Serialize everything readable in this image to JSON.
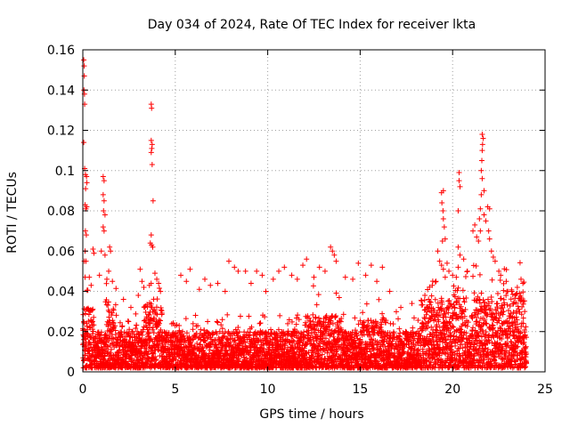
{
  "chart_data": {
    "type": "scatter",
    "title": "Day 034 of 2024, Rate Of TEC Index for receiver lkta",
    "xlabel": "GPS time / hours",
    "ylabel": "ROTI / TECUs",
    "xlim": [
      0,
      25
    ],
    "ylim": [
      0,
      0.16
    ],
    "xticks": [
      0,
      5,
      10,
      15,
      20,
      25
    ],
    "yticks": [
      0,
      0.02,
      0.04,
      0.06,
      0.08,
      0.1,
      0.12,
      0.14,
      0.16
    ],
    "xtick_labels": [
      "0",
      "5",
      "10",
      "15",
      "20",
      "25"
    ],
    "ytick_labels": [
      "0",
      "0.02",
      "0.04",
      "0.06",
      "0.08",
      "0.1",
      "0.12",
      "0.14",
      "0.16"
    ],
    "grid": true,
    "marker": "+",
    "color": "#ff0000",
    "series": [
      {
        "points": [
          [
            0.05,
            0.155
          ],
          [
            0.07,
            0.152
          ],
          [
            0.08,
            0.147
          ],
          [
            0.06,
            0.14
          ],
          [
            0.09,
            0.138
          ],
          [
            0.1,
            0.133
          ],
          [
            0.05,
            0.114
          ],
          [
            0.1,
            0.101
          ],
          [
            0.14,
            0.098
          ],
          [
            0.2,
            0.097
          ],
          [
            0.22,
            0.094
          ],
          [
            0.15,
            0.091
          ],
          [
            0.12,
            0.083
          ],
          [
            0.17,
            0.081
          ],
          [
            0.21,
            0.082
          ],
          [
            0.14,
            0.07
          ],
          [
            0.19,
            0.068
          ],
          [
            0.12,
            0.06
          ],
          [
            0.17,
            0.055
          ],
          [
            0.08,
            0.055
          ],
          [
            0.55,
            0.061
          ],
          [
            0.6,
            0.059
          ],
          [
            0.35,
            0.047
          ],
          [
            0.45,
            0.043
          ],
          [
            1.1,
            0.097
          ],
          [
            1.15,
            0.095
          ],
          [
            1.1,
            0.088
          ],
          [
            1.15,
            0.085
          ],
          [
            1.12,
            0.08
          ],
          [
            1.2,
            0.078
          ],
          [
            1.1,
            0.072
          ],
          [
            1.15,
            0.07
          ],
          [
            1.0,
            0.06
          ],
          [
            1.2,
            0.058
          ],
          [
            1.45,
            0.062
          ],
          [
            1.5,
            0.06
          ],
          [
            1.4,
            0.05
          ],
          [
            1.3,
            0.046
          ],
          [
            1.6,
            0.045
          ],
          [
            0.9,
            0.048
          ],
          [
            2.2,
            0.036
          ],
          [
            2.6,
            0.032
          ],
          [
            3.1,
            0.051
          ],
          [
            3.2,
            0.045
          ],
          [
            3.3,
            0.042
          ],
          [
            3.0,
            0.038
          ],
          [
            3.7,
            0.133
          ],
          [
            3.72,
            0.131
          ],
          [
            3.7,
            0.115
          ],
          [
            3.75,
            0.113
          ],
          [
            3.73,
            0.111
          ],
          [
            3.7,
            0.109
          ],
          [
            3.75,
            0.103
          ],
          [
            3.8,
            0.085
          ],
          [
            3.7,
            0.068
          ],
          [
            3.65,
            0.064
          ],
          [
            3.72,
            0.063
          ],
          [
            3.78,
            0.062
          ],
          [
            3.9,
            0.049
          ],
          [
            4.0,
            0.046
          ],
          [
            4.1,
            0.044
          ],
          [
            3.6,
            0.043
          ],
          [
            4.2,
            0.04
          ],
          [
            5.3,
            0.048
          ],
          [
            5.8,
            0.051
          ],
          [
            5.6,
            0.045
          ],
          [
            6.3,
            0.041
          ],
          [
            6.6,
            0.046
          ],
          [
            6.9,
            0.043
          ],
          [
            7.3,
            0.044
          ],
          [
            7.7,
            0.04
          ],
          [
            7.9,
            0.055
          ],
          [
            8.2,
            0.052
          ],
          [
            8.4,
            0.05
          ],
          [
            8.8,
            0.05
          ],
          [
            9.1,
            0.044
          ],
          [
            9.4,
            0.05
          ],
          [
            9.7,
            0.048
          ],
          [
            9.9,
            0.04
          ],
          [
            10.3,
            0.046
          ],
          [
            10.6,
            0.05
          ],
          [
            10.9,
            0.052
          ],
          [
            11.3,
            0.048
          ],
          [
            11.6,
            0.046
          ],
          [
            11.9,
            0.053
          ],
          [
            12.1,
            0.056
          ],
          [
            12.5,
            0.047
          ],
          [
            12.8,
            0.052
          ],
          [
            13.1,
            0.05
          ],
          [
            13.4,
            0.062
          ],
          [
            13.5,
            0.06
          ],
          [
            13.6,
            0.058
          ],
          [
            13.7,
            0.055
          ],
          [
            14.2,
            0.047
          ],
          [
            14.6,
            0.046
          ],
          [
            14.9,
            0.054
          ],
          [
            15.3,
            0.048
          ],
          [
            15.6,
            0.053
          ],
          [
            15.9,
            0.045
          ],
          [
            16.2,
            0.052
          ],
          [
            16.6,
            0.04
          ],
          [
            17.2,
            0.032
          ],
          [
            17.8,
            0.034
          ],
          [
            18.5,
            0.038
          ],
          [
            18.7,
            0.036
          ],
          [
            18.9,
            0.043
          ],
          [
            19.1,
            0.045
          ],
          [
            19.3,
            0.055
          ],
          [
            19.4,
            0.053
          ],
          [
            19.2,
            0.06
          ],
          [
            19.5,
            0.051
          ],
          [
            19.6,
            0.047
          ],
          [
            19.45,
            0.065
          ],
          [
            19.55,
            0.072
          ],
          [
            19.5,
            0.076
          ],
          [
            19.48,
            0.08
          ],
          [
            19.42,
            0.084
          ],
          [
            19.4,
            0.089
          ],
          [
            19.5,
            0.09
          ],
          [
            19.6,
            0.066
          ],
          [
            19.7,
            0.054
          ],
          [
            19.8,
            0.05
          ],
          [
            20.0,
            0.048
          ],
          [
            20.2,
            0.047
          ],
          [
            20.3,
            0.052
          ],
          [
            20.4,
            0.058
          ],
          [
            20.3,
            0.062
          ],
          [
            20.35,
            0.095
          ],
          [
            20.4,
            0.092
          ],
          [
            20.35,
            0.099
          ],
          [
            20.3,
            0.08
          ],
          [
            20.6,
            0.056
          ],
          [
            20.8,
            0.05
          ],
          [
            21.1,
            0.07
          ],
          [
            21.2,
            0.073
          ],
          [
            21.3,
            0.067
          ],
          [
            21.4,
            0.065
          ],
          [
            21.5,
            0.07
          ],
          [
            21.45,
            0.076
          ],
          [
            21.5,
            0.081
          ],
          [
            21.55,
            0.088
          ],
          [
            21.6,
            0.096
          ],
          [
            21.55,
            0.1
          ],
          [
            21.58,
            0.105
          ],
          [
            21.6,
            0.11
          ],
          [
            21.62,
            0.113
          ],
          [
            21.6,
            0.118
          ],
          [
            21.65,
            0.116
          ],
          [
            21.7,
            0.09
          ],
          [
            21.7,
            0.078
          ],
          [
            21.8,
            0.075
          ],
          [
            21.9,
            0.082
          ],
          [
            22.0,
            0.081
          ],
          [
            21.95,
            0.07
          ],
          [
            22.0,
            0.066
          ],
          [
            22.1,
            0.06
          ],
          [
            22.2,
            0.057
          ],
          [
            22.3,
            0.055
          ],
          [
            22.5,
            0.05
          ],
          [
            22.6,
            0.048
          ],
          [
            22.9,
            0.045
          ],
          [
            23.2,
            0.04
          ],
          [
            23.5,
            0.042
          ],
          [
            23.7,
            0.046
          ],
          [
            23.8,
            0.044
          ],
          [
            23.9,
            0.03
          ]
        ],
        "dense_band": {
          "x_range": [
            0,
            24
          ],
          "y_range": [
            0.002,
            0.03
          ],
          "note_count": 0
        }
      }
    ]
  }
}
